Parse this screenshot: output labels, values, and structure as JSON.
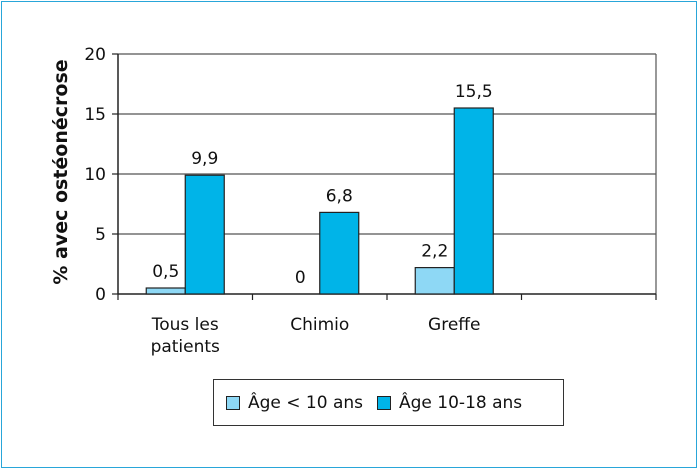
{
  "chart_data": {
    "type": "bar",
    "categories": [
      "Tous les patients",
      "Chimio",
      "Greffe"
    ],
    "category_lines": [
      [
        "Tous les",
        "patients"
      ],
      [
        "Chimio"
      ],
      [
        "Greffe"
      ]
    ],
    "extra_empty_slot": true,
    "series": [
      {
        "name": "Âge < 10 ans",
        "values": [
          0.5,
          0,
          2.2
        ],
        "labels": [
          "0,5",
          "0",
          "2,2"
        ],
        "color": "#8ed8f5"
      },
      {
        "name": "Âge 10-18 ans",
        "values": [
          9.9,
          6.8,
          15.5
        ],
        "labels": [
          "9,9",
          "6,8",
          "15,5"
        ],
        "color": "#00b4e8"
      }
    ],
    "ylabel": "% avec ostéonécrose",
    "xlabel": "",
    "ylim": [
      0,
      20
    ],
    "yticks": [
      0,
      5,
      10,
      15,
      20
    ],
    "grid": true,
    "legend_position": "bottom",
    "frame_color": "#29a6d9"
  }
}
